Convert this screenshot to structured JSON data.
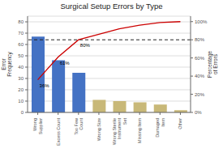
{
  "chart_data": {
    "type": "bar",
    "title": "Surgical Setup Errors by Type",
    "y_label": "Error\nFrequency",
    "y2_label": "Percentage\nof Errors",
    "categories": [
      "Wrong\nSupplier",
      "Excess Count",
      "Too Few\nCount",
      "Wrong Size",
      "Wrong Sterile\nInstrument\nSet",
      "Missing Item",
      "Damaged\nItem",
      "Other"
    ],
    "series": [
      {
        "type": "bar",
        "values": [
          67,
          46,
          35,
          11,
          10,
          9,
          7,
          2
        ],
        "colors": [
          "#4472C4",
          "#4472C4",
          "#4472C4",
          "#C8B878",
          "#C8B878",
          "#C8B878",
          "#C8B878",
          "#C8B878"
        ]
      },
      {
        "type": "line",
        "axis": "y2",
        "color": "#CC0000",
        "values": [
          36,
          61,
          80,
          86,
          92,
          96,
          99,
          100
        ]
      }
    ],
    "reference_lines": [
      {
        "value": 80,
        "axis": "y2",
        "color": "#222222",
        "line_style": "dashed"
      }
    ],
    "annotations": [
      {
        "text": "36%",
        "x": "Wrong\nSupplier"
      },
      {
        "text": "61%",
        "x": "Excess Count"
      },
      {
        "text": "80%",
        "x": "Too Few\nCount"
      }
    ],
    "ylim": [
      0,
      85
    ],
    "yticks": [
      0,
      10,
      20,
      30,
      40,
      50,
      60,
      70,
      80
    ],
    "y2lim": [
      0,
      106
    ],
    "y2ticks": [
      {
        "value": 0,
        "label": "0%"
      },
      {
        "value": 20,
        "label": "20%"
      },
      {
        "value": 40,
        "label": "40%"
      },
      {
        "value": 60,
        "label": "60%"
      },
      {
        "value": 80,
        "label": "80%"
      },
      {
        "value": 100,
        "label": "100%"
      }
    ],
    "grid": true
  }
}
